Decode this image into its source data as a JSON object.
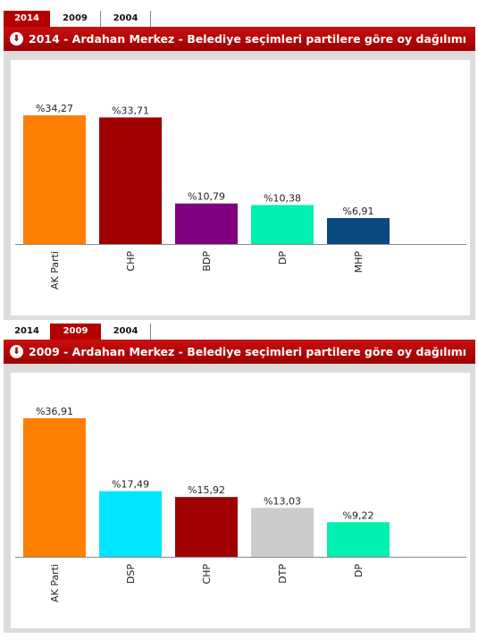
{
  "chart_data": [
    {
      "type": "bar",
      "tabs": [
        "2014",
        "2009",
        "2004"
      ],
      "active_tab": 0,
      "title": "2014 - Ardahan Merkez - Belediye seçimleri partilere göre oy dağılımı",
      "categories": [
        "AK Parti",
        "CHP",
        "BDP",
        "DP",
        "MHP"
      ],
      "values": [
        34.27,
        33.71,
        10.79,
        10.38,
        6.91
      ],
      "value_labels": [
        "%34,27",
        "%33,71",
        "%10,79",
        "%10,38",
        "%6,91"
      ],
      "colors": [
        "#ff7f00",
        "#a00000",
        "#800080",
        "#00f0b0",
        "#0a4a80"
      ],
      "ylim": [
        0,
        40
      ]
    },
    {
      "type": "bar",
      "tabs": [
        "2014",
        "2009",
        "2004"
      ],
      "active_tab": 1,
      "title": "2009 - Ardahan Merkez - Belediye seçimleri partilere göre oy dağılımı",
      "categories": [
        "AK Parti",
        "DSP",
        "CHP",
        "DTP",
        "DP"
      ],
      "values": [
        36.91,
        17.49,
        15.92,
        13.03,
        9.22
      ],
      "value_labels": [
        "%36,91",
        "%17,49",
        "%15,92",
        "%13,03",
        "%9,22"
      ],
      "colors": [
        "#ff7f00",
        "#00e5ff",
        "#a00000",
        "#cccccc",
        "#00f0b0"
      ],
      "ylim": [
        0,
        40
      ]
    }
  ]
}
